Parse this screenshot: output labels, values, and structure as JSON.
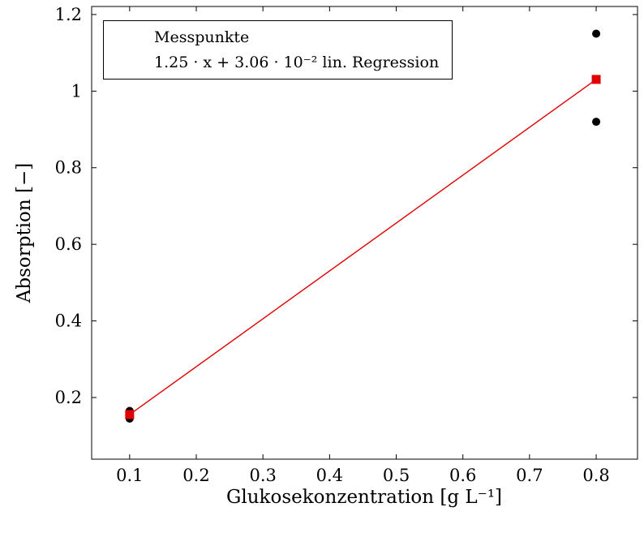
{
  "chart_data": {
    "type": "scatter",
    "title": "",
    "xlabel": "Glukosekonzentration [g L⁻¹]",
    "ylabel": "Absorption [−]",
    "xlim": [
      0.043,
      0.862
    ],
    "ylim": [
      0.039,
      1.221
    ],
    "grid": false,
    "legend_position": "top-left",
    "xticks": [
      0.1,
      0.2,
      0.3,
      0.4,
      0.5,
      0.6,
      0.7,
      0.8
    ],
    "xtick_labels": [
      "0.1",
      "0.2",
      "0.3",
      "0.4",
      "0.5",
      "0.6",
      "0.7",
      "0.8"
    ],
    "yticks": [
      0.2,
      0.4,
      0.6,
      0.8,
      1.0,
      1.2
    ],
    "ytick_labels": [
      "0.2",
      "0.4",
      "0.6",
      "0.8",
      "1",
      "1.2"
    ],
    "series": [
      {
        "name": "Messpunkte",
        "type": "scatter",
        "marker": "circle",
        "color": "#000000",
        "points": [
          [
            0.1,
            0.145
          ],
          [
            0.1,
            0.165
          ],
          [
            0.8,
            0.92
          ],
          [
            0.8,
            1.15
          ]
        ]
      },
      {
        "name": "1.25 · x + 3.06 · 10⁻² lin. Regression",
        "type": "line",
        "marker": "square",
        "color": "#e00000",
        "points": [
          [
            0.1,
            0.1556
          ],
          [
            0.8,
            1.0306
          ]
        ]
      }
    ]
  }
}
